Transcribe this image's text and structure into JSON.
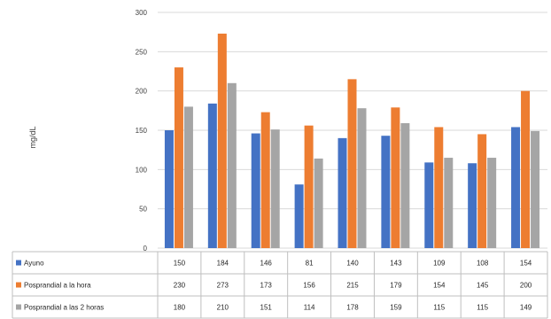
{
  "chart_data": {
    "type": "bar",
    "ylabel": "mg/dL",
    "ylim": [
      0,
      300
    ],
    "yticks": [
      0,
      50,
      100,
      150,
      200,
      250,
      300
    ],
    "grid": true,
    "legend_placement": "table-left",
    "categories": [
      "",
      "",
      "",
      "",
      "",
      "",
      "",
      "",
      ""
    ],
    "series": [
      {
        "name": "Ayuno",
        "color": "#4472C4",
        "values": [
          150,
          184,
          146,
          81,
          140,
          143,
          109,
          108,
          154
        ]
      },
      {
        "name": "Posprandial a la hora",
        "color": "#ED7D31",
        "values": [
          230,
          273,
          173,
          156,
          215,
          179,
          154,
          145,
          200
        ]
      },
      {
        "name": "Posprandial a las 2 horas",
        "color": "#A5A5A5",
        "values": [
          180,
          210,
          151,
          114,
          178,
          159,
          115,
          115,
          149
        ]
      }
    ]
  }
}
